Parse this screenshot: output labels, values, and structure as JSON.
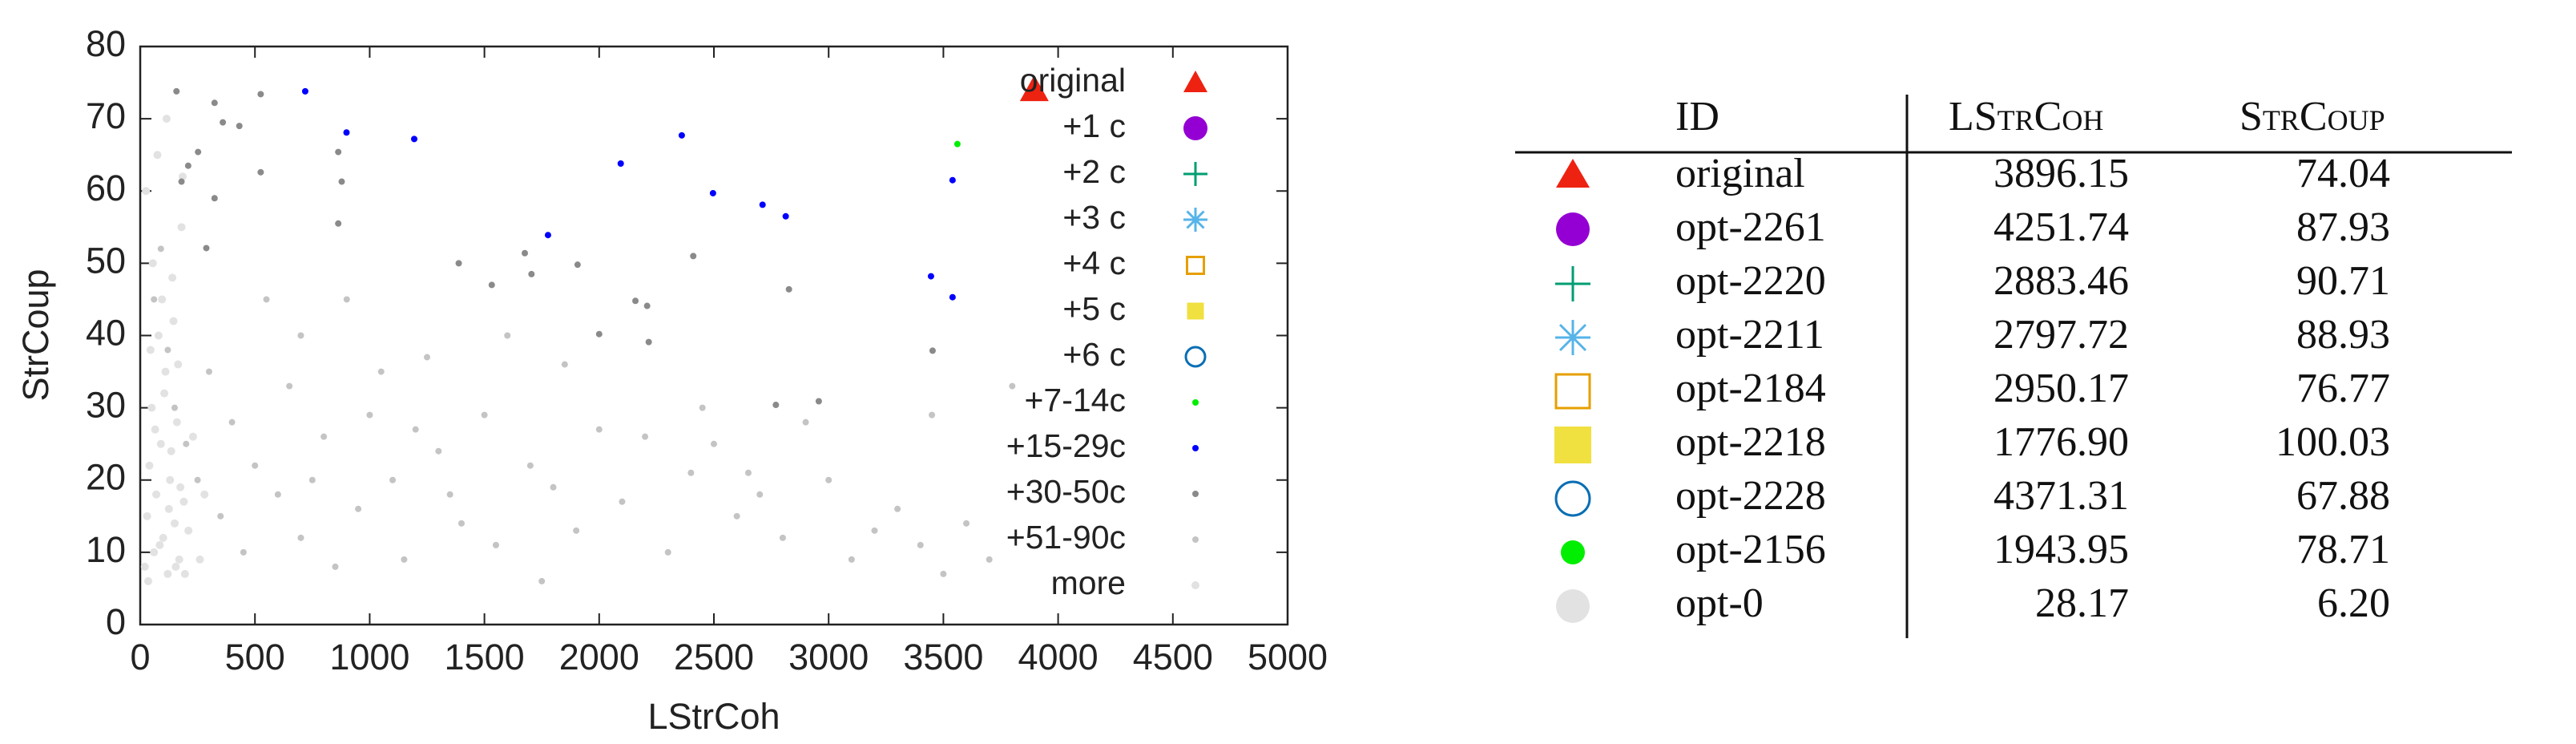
{
  "chart_data": {
    "type": "scatter",
    "x_label": "LStrCoh",
    "y_label": "StrCoup",
    "xlim": [
      0,
      5000
    ],
    "ylim": [
      0,
      80
    ],
    "xticks": [
      0,
      500,
      1000,
      1500,
      2000,
      2500,
      3000,
      3500,
      4000,
      4500,
      5000
    ],
    "yticks": [
      0,
      10,
      20,
      30,
      40,
      50,
      60,
      70,
      80
    ],
    "legend": "top-right",
    "series": [
      {
        "name": "more",
        "color": "#e2e2e2",
        "marker": "dot-large",
        "x": [
          20,
          30,
          40,
          50,
          60,
          70,
          80,
          90,
          100,
          110,
          120,
          130,
          140,
          150,
          160,
          170,
          180,
          190,
          25,
          35,
          45,
          55,
          65,
          75,
          85,
          95,
          105,
          115,
          125,
          135,
          145,
          155,
          165,
          175,
          185,
          195,
          210,
          230,
          260,
          280
        ],
        "y": [
          8,
          15,
          22,
          30,
          10,
          18,
          40,
          25,
          12,
          35,
          7,
          20,
          48,
          14,
          28,
          9,
          55,
          17,
          60,
          6,
          38,
          50,
          27,
          65,
          11,
          45,
          32,
          70,
          16,
          24,
          42,
          8,
          36,
          19,
          62,
          7,
          13,
          26,
          9,
          18
        ]
      },
      {
        "name": "+51-90c",
        "color": "#c4c4c4",
        "marker": "dot",
        "x": [
          60,
          90,
          120,
          150,
          200,
          250,
          300,
          350,
          400,
          450,
          500,
          600,
          650,
          700,
          800,
          850,
          900,
          950,
          1000,
          1100,
          1150,
          1250,
          1300,
          1400,
          1500,
          1550,
          1700,
          1750,
          1800,
          1900,
          2000,
          2100,
          2200,
          2300,
          2400,
          2500,
          2600,
          2700,
          2800,
          3000,
          3100,
          3200,
          3300,
          3400,
          3500,
          3600,
          3700,
          3800,
          1600,
          1200,
          700,
          550,
          1050,
          2450,
          1850,
          2650,
          2900,
          3450,
          1350,
          750
        ],
        "y": [
          45,
          52,
          38,
          30,
          25,
          20,
          35,
          15,
          28,
          10,
          22,
          18,
          33,
          12,
          26,
          8,
          45,
          16,
          29,
          20,
          9,
          37,
          24,
          14,
          29,
          11,
          22,
          6,
          19,
          13,
          27,
          17,
          26,
          10,
          21,
          25,
          15,
          18,
          12,
          20,
          9,
          13,
          16,
          11,
          7,
          14,
          9,
          33,
          40,
          27,
          40,
          45,
          35,
          30,
          36,
          21,
          28,
          29,
          18,
          20
        ]
      },
      {
        "name": "+30-50c",
        "color": "#8a8a8a",
        "marker": "dot",
        "x": [
          158,
          324,
          525,
          360,
          432,
          252,
          863,
          878,
          863,
          1676,
          1906,
          1388,
          2410,
          1532,
          1705,
          2158,
          2209,
          2000,
          2216,
          2827,
          3453,
          2957,
          2770,
          324,
          525,
          180,
          288,
          209
        ],
        "y": [
          73.8,
          72.2,
          73.4,
          69.5,
          69,
          65.4,
          65.4,
          61.3,
          55.5,
          51.4,
          49.8,
          50,
          51,
          47,
          48.5,
          44.8,
          44.1,
          40.2,
          39.1,
          46.4,
          37.9,
          30.9,
          30.4,
          59,
          62.6,
          61.3,
          52.1,
          63.5
        ]
      },
      {
        "name": "+15-29c",
        "color": "#0000ff",
        "marker": "dot",
        "x": [
          719,
          899,
          1194,
          2094,
          2360,
          2496,
          2712,
          2813,
          1777,
          3446,
          3540,
          3540
        ],
        "y": [
          73.8,
          68.1,
          67.2,
          63.8,
          67.7,
          59.7,
          58.1,
          56.5,
          53.9,
          48.2,
          45.3,
          61.5
        ]
      },
      {
        "name": "+7-14c",
        "color": "#00ee00",
        "marker": "dot",
        "x": [
          3561
        ],
        "y": [
          66.5
        ]
      },
      {
        "name": "+6 c",
        "color": "#0a6eb4",
        "marker": "circle-open",
        "x": [],
        "y": []
      },
      {
        "name": "+5 c",
        "color": "#f0e040",
        "marker": "square",
        "x": [],
        "y": []
      },
      {
        "name": "+4 c",
        "color": "#e69f00",
        "marker": "square-open",
        "x": [],
        "y": []
      },
      {
        "name": "+3 c",
        "color": "#56b4e9",
        "marker": "star",
        "x": [],
        "y": []
      },
      {
        "name": "+2 c",
        "color": "#009e73",
        "marker": "plus",
        "x": [],
        "y": []
      },
      {
        "name": "+1 c",
        "color": "#9400d3",
        "marker": "circle",
        "x": [],
        "y": []
      },
      {
        "name": "original",
        "color": "#ee2211",
        "marker": "triangle",
        "x": [
          3896.15
        ],
        "y": [
          74.04
        ]
      }
    ],
    "legend_order": [
      "original",
      "+1 c",
      "+2 c",
      "+3 c",
      "+4 c",
      "+5 c",
      "+6 c",
      "+7-14c",
      "+15-29c",
      "+30-50c",
      "+51-90c",
      "more"
    ]
  },
  "table": {
    "header": [
      "ID",
      "LStrCoh",
      "StrCoup"
    ],
    "rows": [
      [
        "original",
        "3896.15",
        "74.04"
      ],
      [
        "opt-2261",
        "4251.74",
        "87.93"
      ],
      [
        "opt-2220",
        "2883.46",
        "90.71"
      ],
      [
        "opt-2211",
        "2797.72",
        "88.93"
      ],
      [
        "opt-2184",
        "2950.17",
        "76.77"
      ],
      [
        "opt-2218",
        "1776.90",
        "100.03"
      ],
      [
        "opt-2228",
        "4371.31",
        "67.88"
      ],
      [
        "opt-2156",
        "1943.95",
        "78.71"
      ],
      [
        "opt-0",
        "28.17",
        "6.20"
      ]
    ]
  }
}
